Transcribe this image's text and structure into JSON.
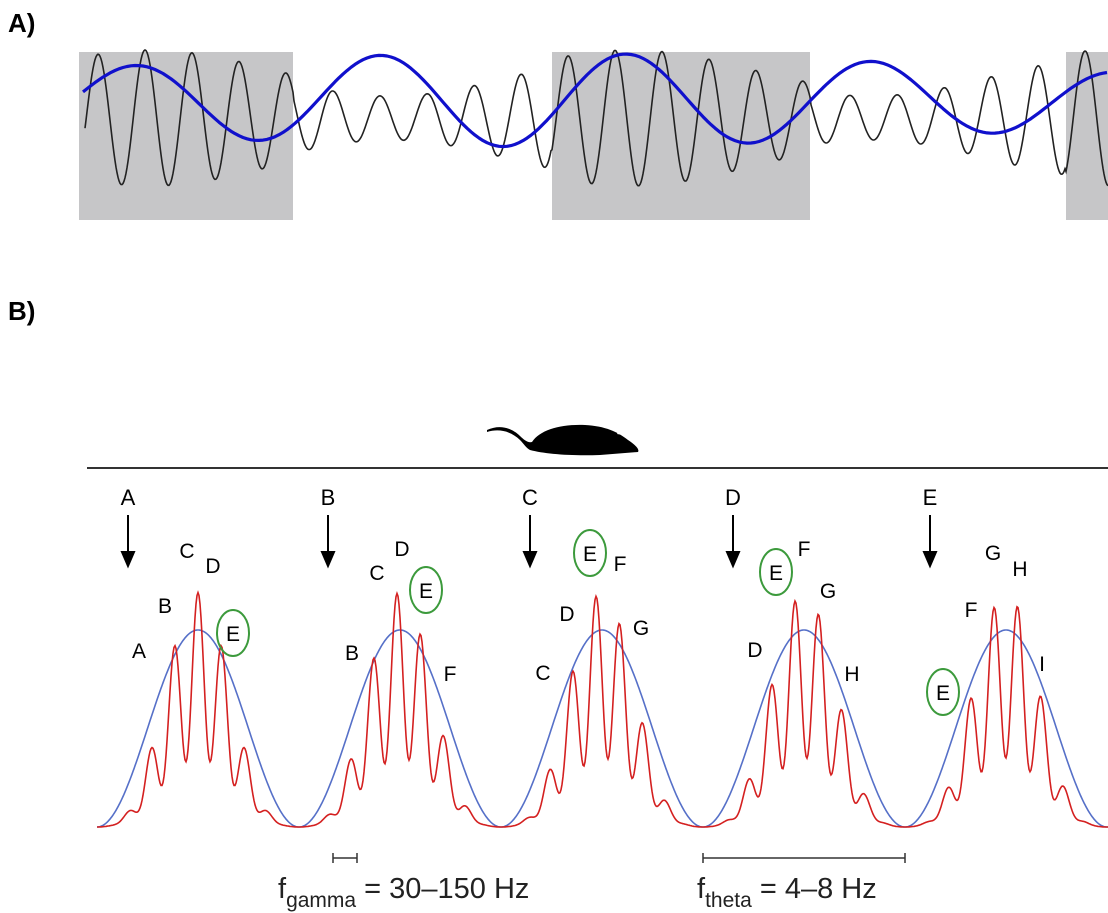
{
  "panels": [
    {
      "label": "A)"
    },
    {
      "label": "B)"
    }
  ],
  "position_markers": [
    "A",
    "B",
    "C",
    "D",
    "E"
  ],
  "cycles": [
    {
      "peaks": [
        "A",
        "B",
        "C",
        "D",
        "E"
      ]
    },
    {
      "peaks": [
        "B",
        "C",
        "D",
        "E",
        "F"
      ]
    },
    {
      "peaks": [
        "C",
        "D",
        "E",
        "F",
        "G"
      ]
    },
    {
      "peaks": [
        "D",
        "E",
        "F",
        "G",
        "H"
      ]
    },
    {
      "peaks": [
        "E",
        "F",
        "G",
        "H",
        "I"
      ]
    }
  ],
  "formulas": [
    {
      "symbol": "f",
      "subscript": "gamma",
      "text": " = 30–150 Hz"
    },
    {
      "symbol": "f",
      "subscript": "theta",
      "text": " = 4–8 Hz"
    }
  ]
}
